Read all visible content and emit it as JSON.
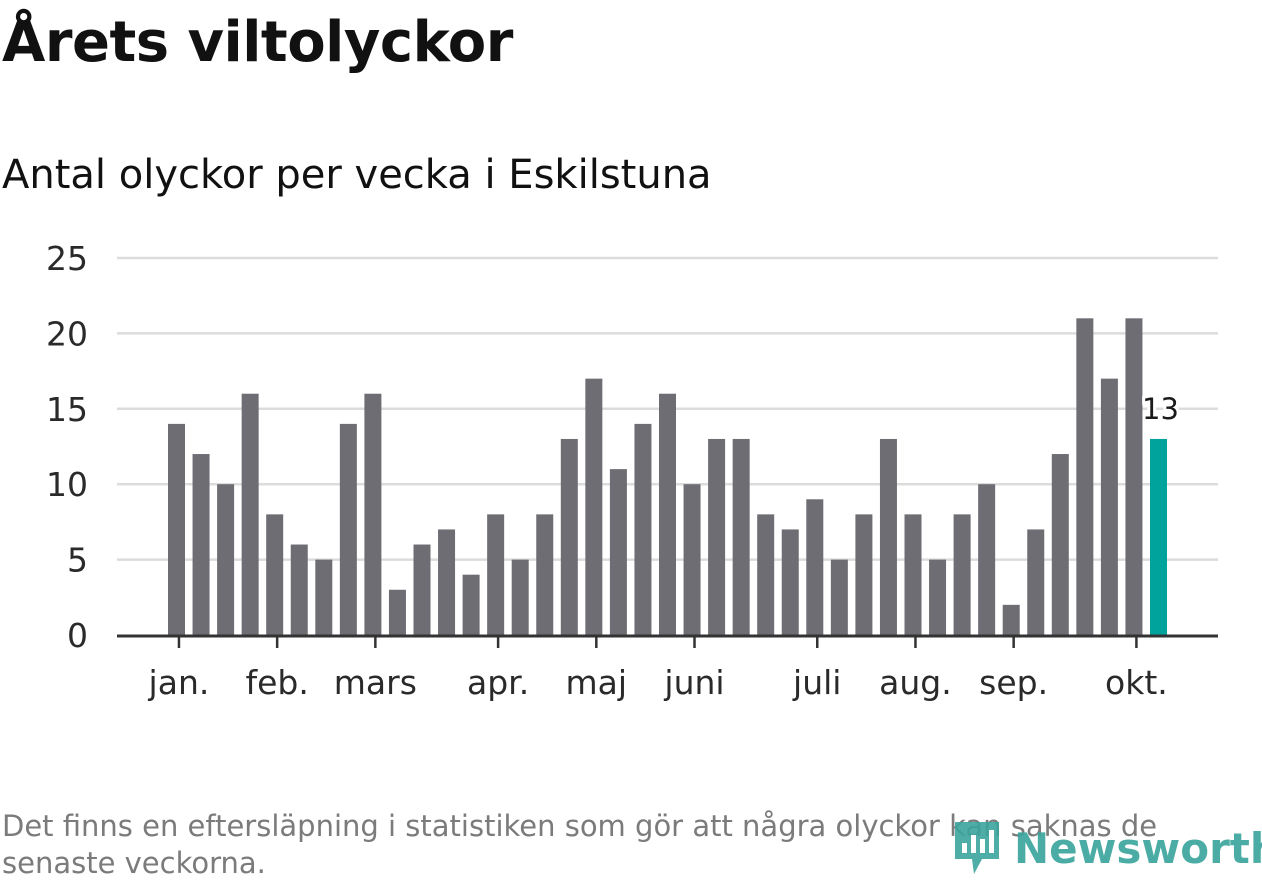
{
  "header": {
    "title": "Årets viltolyckor",
    "subtitle": "Antal olyckor per vecka i Eskilstuna"
  },
  "footer": {
    "note": "Det finns en eftersläpning i statistiken som gör att några olyckor kan saknas de senaste veckorna.",
    "logo_text": "Newsworthy"
  },
  "colors": {
    "bar": "#6e6d73",
    "highlight": "#00a39b",
    "grid": "#dcdcdc",
    "axis": "#333333"
  },
  "chart_data": {
    "type": "bar",
    "title": "Årets viltolyckor",
    "subtitle": "Antal olyckor per vecka i Eskilstuna",
    "xlabel": "",
    "ylabel": "",
    "ylim": [
      0,
      25
    ],
    "yticks": [
      "0",
      "5",
      "10",
      "15",
      "20",
      "25"
    ],
    "grid": true,
    "legend": "none",
    "values": [
      14,
      12,
      10,
      16,
      8,
      6,
      5,
      14,
      16,
      3,
      6,
      7,
      4,
      8,
      5,
      8,
      13,
      17,
      11,
      14,
      16,
      10,
      13,
      13,
      8,
      7,
      9,
      5,
      8,
      13,
      8,
      5,
      8,
      10,
      2,
      7,
      12,
      21,
      17,
      21,
      13
    ],
    "highlight_index": 40,
    "highlight_label": "13",
    "month_ticks": [
      {
        "label": "jan.",
        "index": 0.1
      },
      {
        "label": "feb.",
        "index": 4.1
      },
      {
        "label": "mars",
        "index": 8.1
      },
      {
        "label": "apr.",
        "index": 13.1
      },
      {
        "label": "maj",
        "index": 17.1
      },
      {
        "label": "juni",
        "index": 21.1
      },
      {
        "label": "juli",
        "index": 26.1
      },
      {
        "label": "aug.",
        "index": 30.1
      },
      {
        "label": "sep.",
        "index": 34.1
      },
      {
        "label": "okt.",
        "index": 39.1
      }
    ]
  }
}
